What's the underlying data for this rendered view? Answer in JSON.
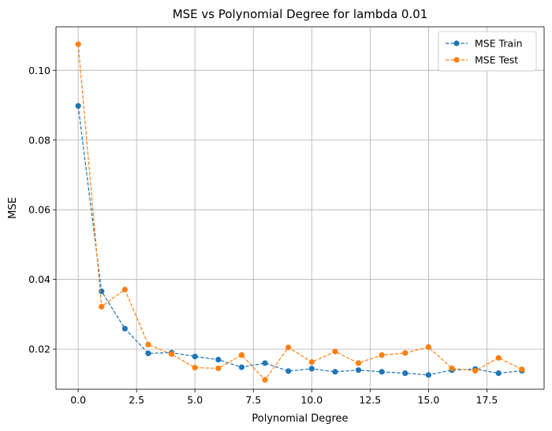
{
  "chart_data": {
    "type": "line",
    "title": "MSE vs Polynomial Degree for lambda 0.01",
    "xlabel": "Polynomial Degree",
    "ylabel": "MSE",
    "xlim": [
      -0.95,
      19.95
    ],
    "ylim": [
      0.0085,
      0.1125
    ],
    "xticks": [
      0.0,
      2.5,
      5.0,
      7.5,
      10.0,
      12.5,
      15.0,
      17.5
    ],
    "xtick_labels": [
      "0.0",
      "2.5",
      "5.0",
      "7.5",
      "10.0",
      "12.5",
      "15.0",
      "17.5"
    ],
    "yticks": [
      0.02,
      0.04,
      0.06,
      0.08,
      0.1
    ],
    "ytick_labels": [
      "0.02",
      "0.04",
      "0.06",
      "0.08",
      "0.10"
    ],
    "grid": true,
    "legend_position": "top-right",
    "x": [
      0,
      1,
      2,
      3,
      4,
      5,
      6,
      7,
      8,
      9,
      10,
      11,
      12,
      13,
      14,
      15,
      16,
      17,
      18,
      19
    ],
    "series": [
      {
        "name": "MSE Train",
        "color": "#1f77b4",
        "values": [
          0.0898,
          0.0366,
          0.0259,
          0.0188,
          0.019,
          0.0179,
          0.017,
          0.0148,
          0.016,
          0.0137,
          0.0144,
          0.0135,
          0.014,
          0.0135,
          0.0131,
          0.0126,
          0.014,
          0.0143,
          0.0131,
          0.0138
        ]
      },
      {
        "name": "MSE Test",
        "color": "#ff7f0e",
        "values": [
          0.1075,
          0.0322,
          0.0371,
          0.0213,
          0.0186,
          0.0147,
          0.0145,
          0.0183,
          0.0112,
          0.0205,
          0.0163,
          0.0193,
          0.016,
          0.0183,
          0.0189,
          0.0206,
          0.0145,
          0.0138,
          0.0175,
          0.0142
        ]
      }
    ]
  }
}
